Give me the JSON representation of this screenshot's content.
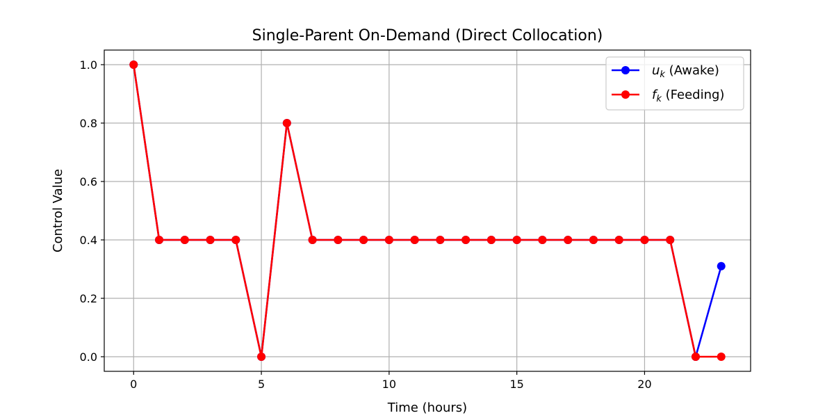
{
  "chart_data": {
    "type": "line",
    "title": "Single-Parent On-Demand (Direct Collocation)",
    "xlabel": "Time (hours)",
    "ylabel": "Control Value",
    "xlim": [
      -1.15,
      24.15
    ],
    "ylim": [
      -0.05,
      1.05
    ],
    "xticks": [
      0,
      5,
      10,
      15,
      20
    ],
    "yticks": [
      0.0,
      0.2,
      0.4,
      0.6,
      0.8,
      1.0
    ],
    "xtick_labels": [
      "0",
      "5",
      "10",
      "15",
      "20"
    ],
    "ytick_labels": [
      "0.0",
      "0.2",
      "0.4",
      "0.6",
      "0.8",
      "1.0"
    ],
    "grid": true,
    "legend_position": "top-right",
    "x": [
      0,
      1,
      2,
      3,
      4,
      5,
      6,
      7,
      8,
      9,
      10,
      11,
      12,
      13,
      14,
      15,
      16,
      17,
      18,
      19,
      20,
      21,
      22,
      23
    ],
    "series": [
      {
        "name": "u_k (Awake)",
        "legend_var": "u",
        "legend_sub": "k",
        "legend_rest": " (Awake)",
        "color": "#0000ff",
        "marker": "circle",
        "values": [
          1.0,
          0.4,
          0.4,
          0.4,
          0.4,
          0.0,
          0.8,
          0.4,
          0.4,
          0.4,
          0.4,
          0.4,
          0.4,
          0.4,
          0.4,
          0.4,
          0.4,
          0.4,
          0.4,
          0.4,
          0.4,
          0.4,
          0.0,
          0.31
        ]
      },
      {
        "name": "f_k (Feeding)",
        "legend_var": "f",
        "legend_sub": "k",
        "legend_rest": " (Feeding)",
        "color": "#ff0000",
        "marker": "circle",
        "values": [
          1.0,
          0.4,
          0.4,
          0.4,
          0.4,
          0.0,
          0.8,
          0.4,
          0.4,
          0.4,
          0.4,
          0.4,
          0.4,
          0.4,
          0.4,
          0.4,
          0.4,
          0.4,
          0.4,
          0.4,
          0.4,
          0.4,
          0.0,
          0.0
        ]
      }
    ]
  }
}
